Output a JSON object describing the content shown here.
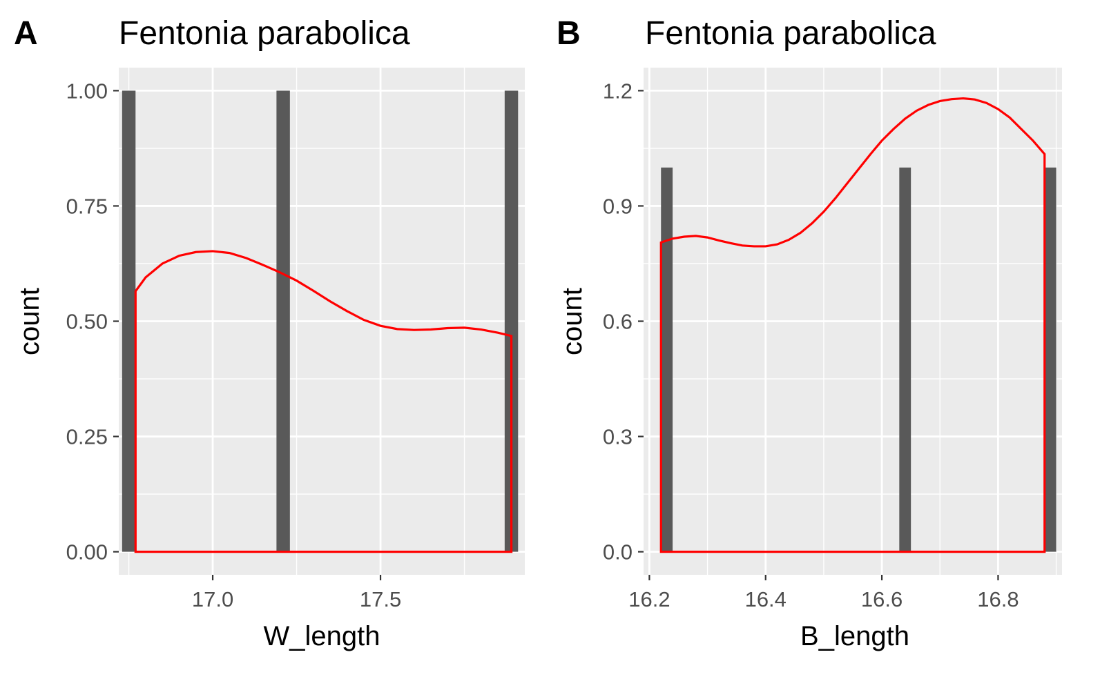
{
  "chart_data": [
    {
      "type": "bar",
      "panel_tag": "A",
      "title": "Fentonia parabolica",
      "xlabel": "W_length",
      "ylabel": "count",
      "xlim": [
        16.72,
        17.93
      ],
      "ylim": [
        -0.05,
        1.05
      ],
      "x_ticks": [
        17.0,
        17.5
      ],
      "x_tick_labels": [
        "17.0",
        "17.5"
      ],
      "y_ticks": [
        0.0,
        0.25,
        0.5,
        0.75,
        1.0
      ],
      "y_tick_labels": [
        "0.00",
        "0.25",
        "0.50",
        "0.75",
        "1.00"
      ],
      "bars": [
        {
          "x_start": 16.73,
          "x_end": 16.77,
          "count": 1
        },
        {
          "x_start": 17.19,
          "x_end": 17.23,
          "count": 1
        },
        {
          "x_start": 17.87,
          "x_end": 17.91,
          "count": 1
        }
      ],
      "density_curve": {
        "color": "#ff0000",
        "x": [
          16.77,
          16.8,
          16.85,
          16.9,
          16.95,
          17.0,
          17.05,
          17.1,
          17.15,
          17.2,
          17.25,
          17.3,
          17.35,
          17.4,
          17.45,
          17.5,
          17.55,
          17.6,
          17.65,
          17.7,
          17.75,
          17.8,
          17.85,
          17.89
        ],
        "y": [
          0.565,
          0.595,
          0.625,
          0.642,
          0.65,
          0.652,
          0.648,
          0.637,
          0.622,
          0.606,
          0.588,
          0.566,
          0.543,
          0.522,
          0.503,
          0.49,
          0.483,
          0.481,
          0.482,
          0.485,
          0.486,
          0.482,
          0.475,
          0.468
        ]
      },
      "bar_color": "#595959",
      "panel_background": "#ebebeb",
      "grid": true
    },
    {
      "type": "bar",
      "panel_tag": "B",
      "title": "Fentonia parabolica",
      "xlabel": "B_length",
      "ylabel": "count",
      "xlim": [
        16.19,
        16.91
      ],
      "ylim": [
        -0.06,
        1.26
      ],
      "x_ticks": [
        16.2,
        16.4,
        16.6,
        16.8
      ],
      "x_tick_labels": [
        "16.2",
        "16.4",
        "16.6",
        "16.8"
      ],
      "y_ticks": [
        0.0,
        0.3,
        0.6,
        0.9,
        1.2
      ],
      "y_tick_labels": [
        "0.0",
        "0.3",
        "0.6",
        "0.9",
        "1.2"
      ],
      "bars": [
        {
          "x_start": 16.22,
          "x_end": 16.24,
          "count": 1
        },
        {
          "x_start": 16.63,
          "x_end": 16.65,
          "count": 1
        },
        {
          "x_start": 16.88,
          "x_end": 16.9,
          "count": 1
        }
      ],
      "density_curve": {
        "color": "#ff0000",
        "x": [
          16.22,
          16.24,
          16.26,
          16.28,
          16.3,
          16.32,
          16.34,
          16.36,
          16.38,
          16.4,
          16.42,
          16.44,
          16.46,
          16.48,
          16.5,
          16.52,
          16.54,
          16.56,
          16.58,
          16.6,
          16.62,
          16.64,
          16.66,
          16.68,
          16.7,
          16.72,
          16.74,
          16.76,
          16.78,
          16.8,
          16.82,
          16.84,
          16.86,
          16.88
        ],
        "y": [
          0.805,
          0.815,
          0.82,
          0.822,
          0.818,
          0.81,
          0.803,
          0.797,
          0.795,
          0.795,
          0.8,
          0.812,
          0.83,
          0.855,
          0.885,
          0.92,
          0.958,
          0.996,
          1.034,
          1.07,
          1.1,
          1.127,
          1.148,
          1.163,
          1.173,
          1.178,
          1.18,
          1.177,
          1.168,
          1.152,
          1.13,
          1.1,
          1.07,
          1.035
        ]
      },
      "bar_color": "#595959",
      "panel_background": "#ebebeb",
      "grid": true
    }
  ]
}
